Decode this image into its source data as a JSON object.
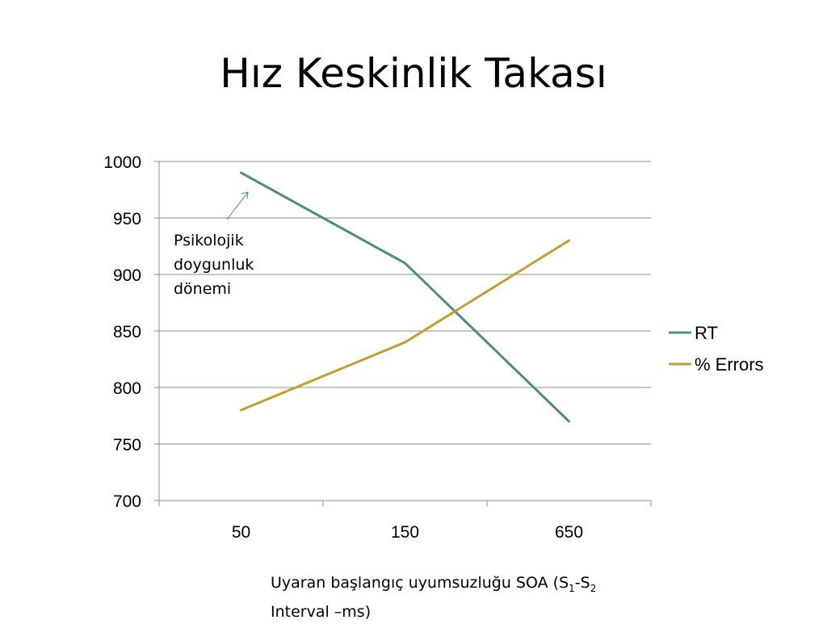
{
  "title": "Hız Keskinlik Takası",
  "annotation": "Psikolojik\ndoygunluk\ndönemi",
  "xcaption": {
    "main": "Uyaran başlangıç uyumsuzluğu SOA  (S",
    "sub1": "1",
    "mid": "-S",
    "sub2": "2",
    "line2": "Interval –ms)"
  },
  "chart_data": {
    "type": "line",
    "categories": [
      "50",
      "150",
      "650"
    ],
    "series": [
      {
        "name": "RT",
        "values": [
          990,
          910,
          770
        ],
        "color": "#4f8f79"
      },
      {
        "name": "% Errors",
        "values": [
          780,
          840,
          930
        ],
        "color": "#c0a033"
      }
    ],
    "ylim": [
      700,
      1000
    ],
    "yticks": [
      "700",
      "750",
      "800",
      "850",
      "900",
      "950",
      "1000"
    ],
    "grid": true,
    "legend_position": "right",
    "annotation_arrow_color": "#4a7fb5"
  }
}
